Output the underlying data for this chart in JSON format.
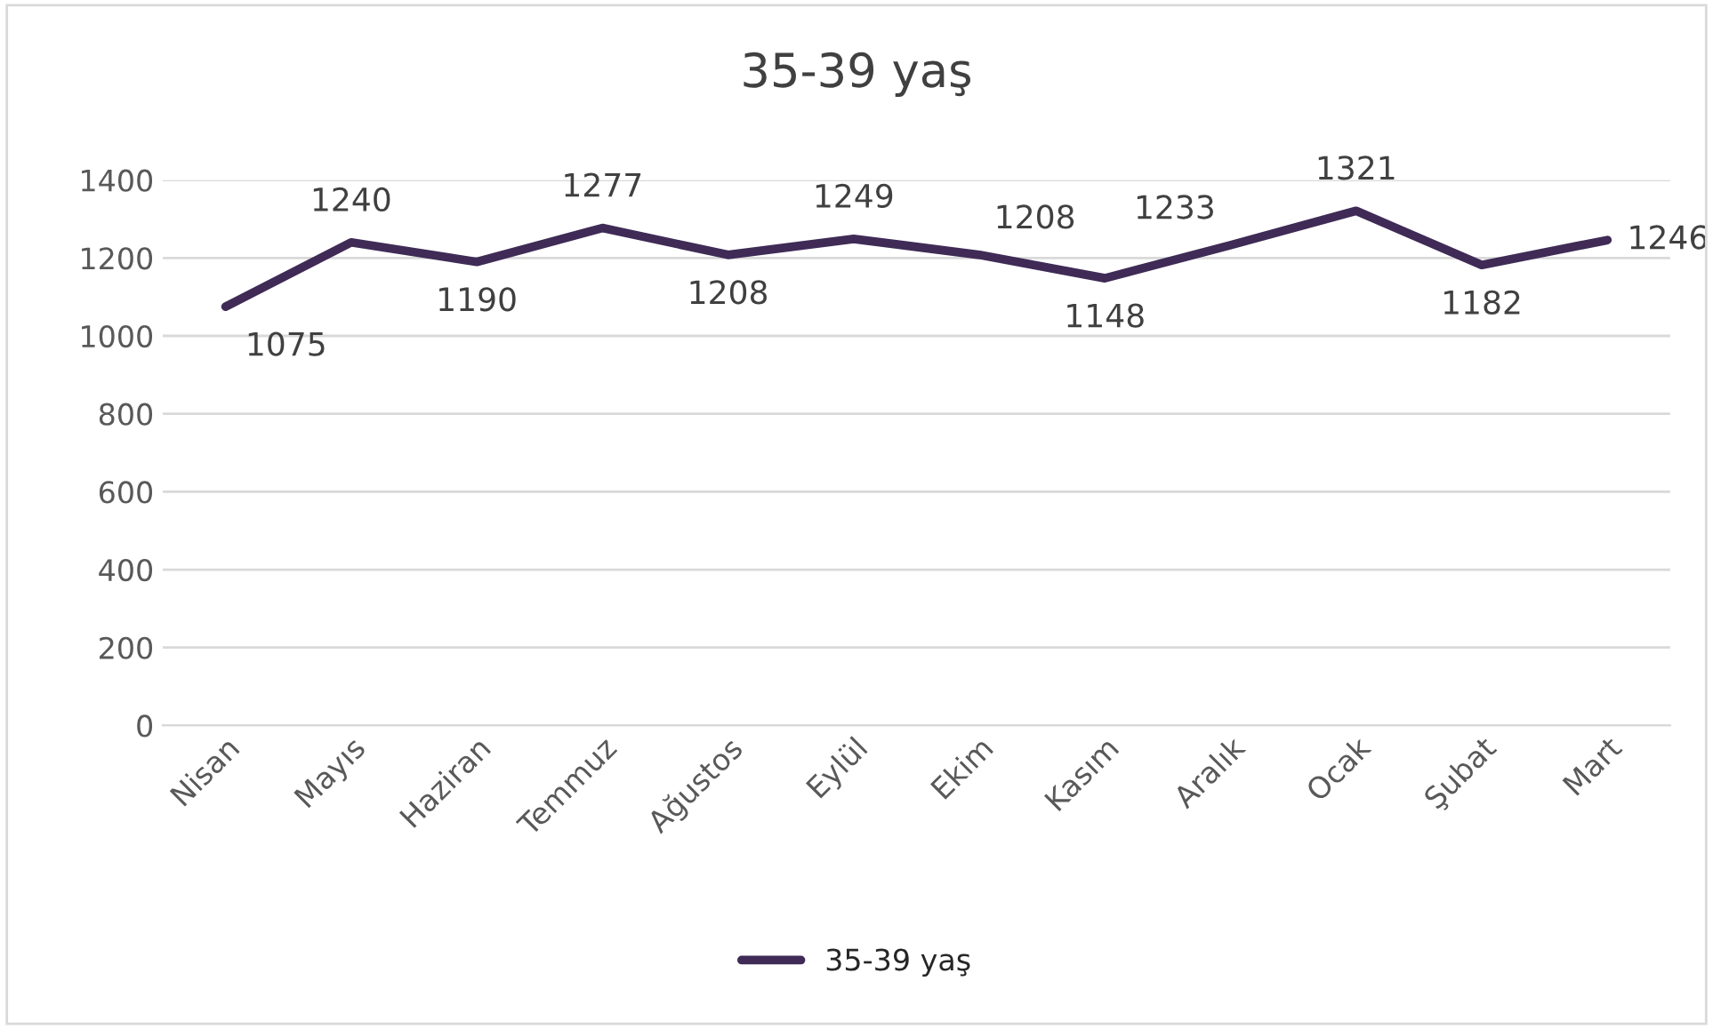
{
  "chart_data": {
    "type": "line",
    "title": "35-39 yaş",
    "categories": [
      "Nisan",
      "Mayıs",
      "Haziran",
      "Temmuz",
      "Ağustos",
      "Eylül",
      "Ekim",
      "Kasım",
      "Aralık",
      "Ocak",
      "Şubat",
      "Mart"
    ],
    "series": [
      {
        "name": "35-39 yaş",
        "color": "#3f2b56",
        "values": [
          1075,
          1240,
          1190,
          1277,
          1208,
          1249,
          1208,
          1148,
          1233,
          1321,
          1182,
          1246
        ]
      }
    ],
    "ylim": [
      0,
      1400
    ],
    "yticks": [
      0,
      200,
      400,
      600,
      800,
      1000,
      1200,
      1400
    ],
    "grid": "y",
    "legend": "bottom",
    "data_labels": true,
    "marker": "none",
    "line_style": "solid"
  }
}
